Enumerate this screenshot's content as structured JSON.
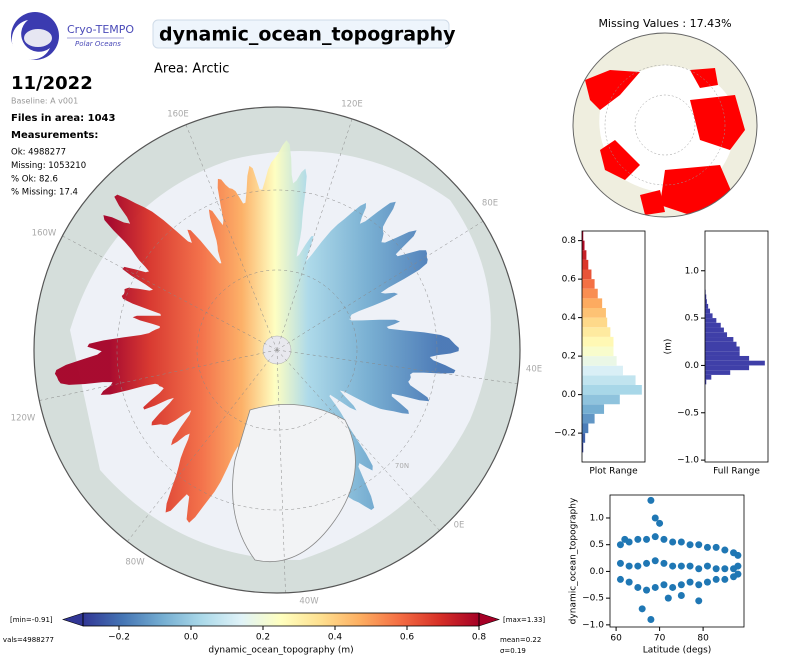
{
  "header": {
    "logo_title": "Cryo-TEMPO",
    "logo_subtitle": "Polar Oceans",
    "title": "dynamic_ocean_topography",
    "area": "Area: Arctic",
    "date": "11/2022",
    "baseline": "Baseline: A v001",
    "files": "Files in area: 1043",
    "measurements_heading": "Measurements:",
    "measurements": [
      "Ok: 4988277",
      "Missing: 1053210",
      "% Ok: 82.6",
      "% Missing: 17.4"
    ]
  },
  "main_map": {
    "labels": [
      "160E",
      "120E",
      "80E",
      "40E",
      "0E",
      "40W",
      "80W",
      "120W",
      "160W",
      "70N"
    ]
  },
  "missing_map": {
    "title": "Missing Values : 17.43%"
  },
  "chart_data": [
    {
      "type": "colorbar",
      "xlabel": "dynamic_ocean_topography (m)",
      "xlim": [
        -0.3,
        0.8
      ],
      "xticks": [
        {
          "value": -0.2,
          "label": "−0.2"
        },
        {
          "value": 0,
          "label": "0.0"
        },
        0.2,
        0.4,
        0.6,
        0.8
      ],
      "colormap": "RdYlBu_r",
      "extend": "both",
      "annotations": [
        "[min=-0.91]",
        "[max=1.33]",
        "vals=4988277",
        "mean=0.22",
        "σ=0.19"
      ]
    },
    {
      "type": "histogram",
      "orientation": "horizontal",
      "xlabel": "Plot Range",
      "ylim": [
        -0.35,
        0.85
      ],
      "yticks": [
        {
          "value": -0.2,
          "label": "−0.2"
        },
        {
          "value": 0,
          "label": "0.0"
        },
        0.2,
        0.4,
        0.6,
        0.8
      ],
      "bins": [
        -0.3,
        -0.25,
        -0.2,
        -0.15,
        -0.1,
        -0.05,
        0,
        0.05,
        0.1,
        0.15,
        0.2,
        0.25,
        0.3,
        0.35,
        0.4,
        0.45,
        0.5,
        0.55,
        0.6,
        0.65,
        0.7,
        0.75,
        0.8,
        0.85
      ],
      "counts": [
        0.02,
        0.05,
        0.1,
        0.2,
        0.35,
        0.6,
        0.95,
        0.85,
        0.65,
        0.55,
        0.5,
        0.5,
        0.45,
        0.4,
        0.38,
        0.32,
        0.25,
        0.2,
        0.15,
        0.1,
        0.07,
        0.04,
        0.02
      ],
      "colormap": "RdYlBu_r"
    },
    {
      "type": "histogram",
      "orientation": "horizontal",
      "xlabel": "Full Range",
      "ylabel": "(m)",
      "ylim": [
        -1.02,
        1.42
      ],
      "yticks": [
        {
          "value": -1,
          "label": "−1.0"
        },
        {
          "value": -0.5,
          "label": "−0.5"
        },
        {
          "value": 0,
          "label": "0.0"
        },
        0.5,
        {
          "value": 1,
          "label": "1.0"
        }
      ],
      "bins": [
        -0.2,
        -0.15,
        -0.1,
        -0.05,
        0,
        0.05,
        0.1,
        0.15,
        0.2,
        0.25,
        0.3,
        0.35,
        0.4,
        0.45,
        0.5,
        0.55,
        0.6,
        0.65,
        0.7,
        0.75,
        0.8
      ],
      "counts": [
        0.02,
        0.1,
        0.4,
        0.7,
        0.95,
        0.7,
        0.55,
        0.55,
        0.5,
        0.45,
        0.35,
        0.3,
        0.25,
        0.18,
        0.12,
        0.08,
        0.05,
        0.03,
        0.02,
        0.01
      ],
      "color": "#3f3fa8"
    },
    {
      "type": "scatter",
      "xlabel": "Latitude (degs)",
      "ylabel": "dynamic_ocean_topography",
      "xlim": [
        58.6,
        89.4
      ],
      "ylim": [
        -1.04,
        1.43
      ],
      "xticks": [
        60,
        70,
        80
      ],
      "yticks": [
        {
          "value": -1,
          "label": "−1.0"
        },
        {
          "value": -0.5,
          "label": "−0.5"
        },
        {
          "value": 0,
          "label": "0.0"
        },
        0.5,
        {
          "value": 1,
          "label": "1.0"
        }
      ],
      "x": [
        61,
        63,
        65,
        67,
        69,
        71,
        73,
        75,
        77,
        79,
        81,
        83,
        85,
        87,
        88,
        61,
        63,
        65,
        67,
        69,
        71,
        73,
        75,
        77,
        79,
        81,
        83,
        85,
        87,
        88,
        61,
        63,
        65,
        67,
        69,
        71,
        73,
        75,
        77,
        79,
        81,
        83,
        85,
        87,
        88,
        69,
        68,
        70,
        66,
        68,
        72,
        75,
        79,
        62
      ],
      "y": [
        0.5,
        0.55,
        0.6,
        0.6,
        0.65,
        0.6,
        0.55,
        0.55,
        0.5,
        0.5,
        0.45,
        0.45,
        0.4,
        0.35,
        0.3,
        0.15,
        0.1,
        0.1,
        0.15,
        0.2,
        0.15,
        0.1,
        0.1,
        0.1,
        0.05,
        0.1,
        0.05,
        0.05,
        0.05,
        0.1,
        -0.15,
        -0.2,
        -0.3,
        -0.35,
        -0.3,
        -0.25,
        -0.3,
        -0.25,
        -0.2,
        -0.25,
        -0.2,
        -0.15,
        -0.15,
        -0.1,
        -0.05,
        1.0,
        1.33,
        0.9,
        -0.7,
        -0.9,
        -0.5,
        -0.45,
        -0.55,
        0.6
      ],
      "color": "#1f77b4"
    }
  ]
}
